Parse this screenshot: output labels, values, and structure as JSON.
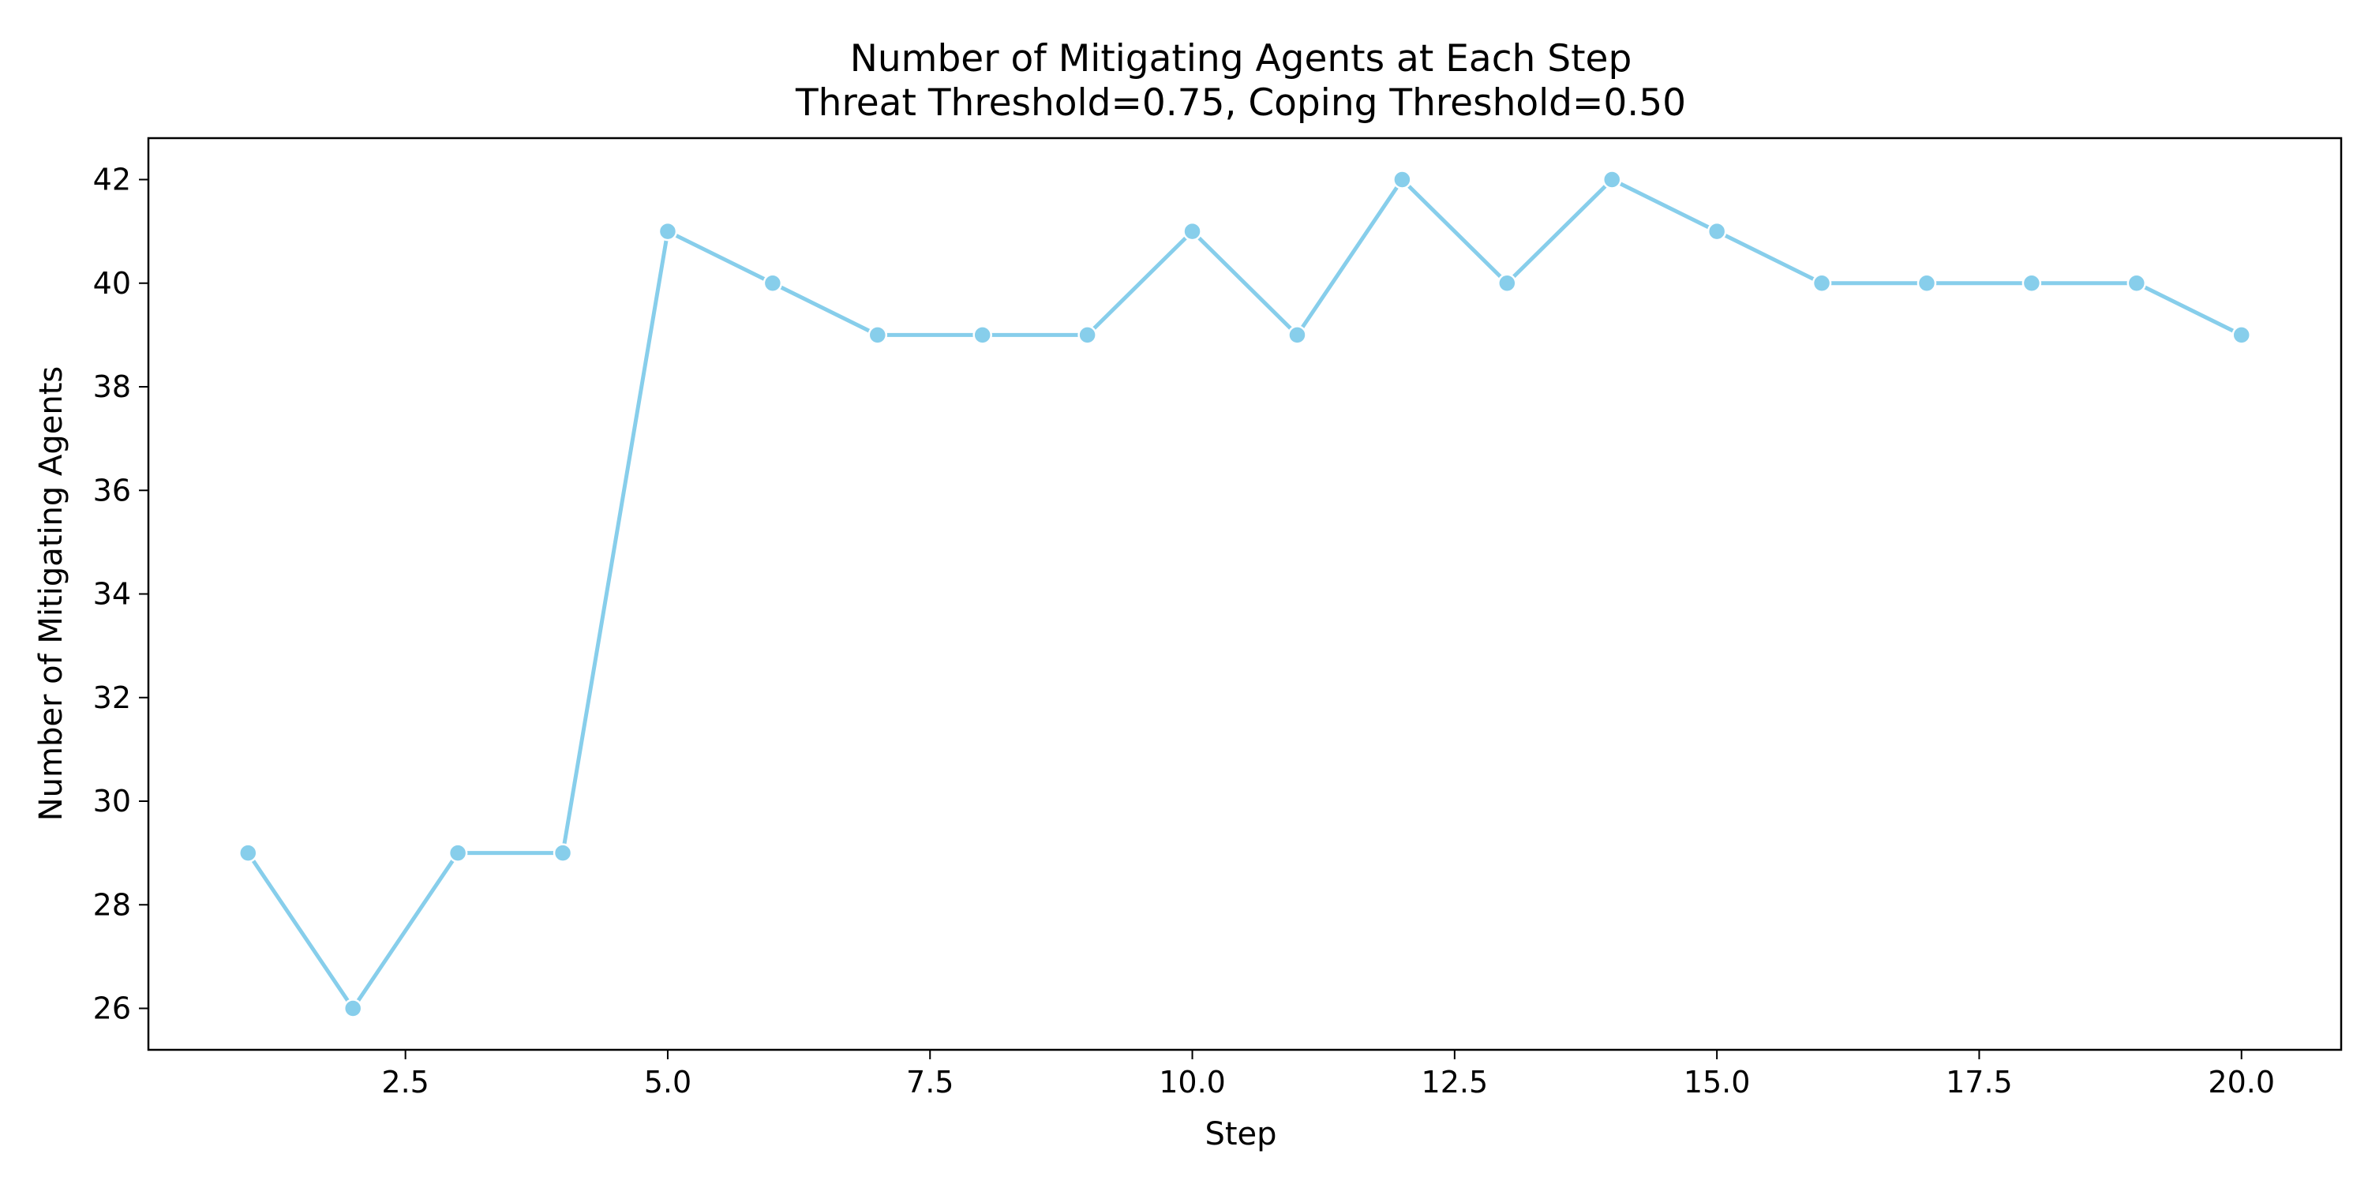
{
  "chart_data": {
    "type": "line",
    "title": "Number of Mitigating Agents at Each Step",
    "subtitle": "Threat Threshold=0.75, Coping Threshold=0.50",
    "xlabel": "Step",
    "ylabel": "Number of Mitigating Agents",
    "xlim": [
      0.05,
      20.95
    ],
    "ylim": [
      25.2,
      42.8
    ],
    "x_ticks": [
      2.5,
      5.0,
      7.5,
      10.0,
      12.5,
      15.0,
      17.5,
      20.0
    ],
    "x_tick_labels": [
      "2.5",
      "5.0",
      "7.5",
      "10.0",
      "12.5",
      "15.0",
      "17.5",
      "20.0"
    ],
    "y_ticks": [
      26,
      28,
      30,
      32,
      34,
      36,
      38,
      40,
      42
    ],
    "y_tick_labels": [
      "26",
      "28",
      "30",
      "32",
      "34",
      "36",
      "38",
      "40",
      "42"
    ],
    "grid": false,
    "legend": "none",
    "series": [
      {
        "color": "#87ceeb",
        "marker": "circle",
        "x": [
          1,
          2,
          3,
          4,
          5,
          6,
          7,
          8,
          9,
          10,
          11,
          12,
          13,
          14,
          15,
          16,
          17,
          18,
          19,
          20
        ],
        "y": [
          29,
          26,
          29,
          29,
          41,
          40,
          39,
          39,
          39,
          41,
          39,
          42,
          40,
          42,
          41,
          40,
          40,
          40,
          40,
          39
        ]
      }
    ]
  }
}
